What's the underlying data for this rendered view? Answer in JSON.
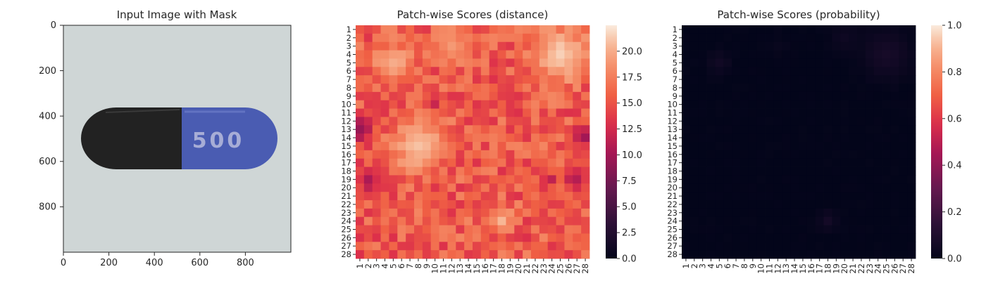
{
  "panels": {
    "image": {
      "title": "Input Image with Mask",
      "x_ticks": [
        "0",
        "200",
        "400",
        "600",
        "800"
      ],
      "y_ticks": [
        "0",
        "200",
        "400",
        "600",
        "800"
      ],
      "capsule_text": "500",
      "colors": {
        "background": "#cfd6d6",
        "capsule_dark": "#232323",
        "capsule_blue": "#4a5cb2",
        "print": "#a7add6"
      }
    },
    "distance": {
      "title": "Patch-wise Scores (distance)",
      "colorbar_ticks": [
        "0.0",
        "2.5",
        "5.0",
        "7.5",
        "10.0",
        "12.5",
        "15.0",
        "17.5",
        "20.0"
      ]
    },
    "probability": {
      "title": "Patch-wise Scores (probability)",
      "colorbar_ticks": [
        "0.0",
        "0.2",
        "0.4",
        "0.6",
        "0.8",
        "1.0"
      ]
    }
  },
  "chart_data": [
    {
      "type": "image",
      "title": "Input Image with Mask",
      "xlim": [
        0,
        1000
      ],
      "ylim": [
        1000,
        0
      ],
      "x_ticks": [
        0,
        200,
        400,
        600,
        800
      ],
      "y_ticks": [
        0,
        200,
        400,
        600,
        800
      ],
      "content": "capsule with black cap and blue body printed 500"
    },
    {
      "type": "heatmap",
      "title": "Patch-wise Scores (distance)",
      "rows": 28,
      "cols": 28,
      "row_labels": [
        "1",
        "2",
        "3",
        "4",
        "5",
        "6",
        "7",
        "8",
        "9",
        "10",
        "11",
        "12",
        "13",
        "14",
        "15",
        "16",
        "17",
        "18",
        "19",
        "20",
        "21",
        "22",
        "23",
        "24",
        "25",
        "26",
        "27",
        "28"
      ],
      "col_labels": [
        "1",
        "2",
        "3",
        "4",
        "5",
        "6",
        "7",
        "8",
        "9",
        "10",
        "11",
        "12",
        "13",
        "14",
        "15",
        "16",
        "17",
        "18",
        "19",
        "20",
        "21",
        "22",
        "23",
        "24",
        "25",
        "26",
        "27",
        "28"
      ],
      "vmin": 0,
      "vmax": 22.5,
      "colorbar_ticks": [
        0.0,
        2.5,
        5.0,
        7.5,
        10.0,
        12.5,
        15.0,
        17.5,
        20.0
      ],
      "colormap": "rocket",
      "baseline": 15.5,
      "hotspots": [
        {
          "row": 4,
          "col": 25,
          "radius": 2.2,
          "value": 21.5
        },
        {
          "row": 5,
          "col": 5,
          "radius": 1.6,
          "value": 20.0
        },
        {
          "row": 15,
          "col": 8,
          "radius": 2.0,
          "value": 21.0
        },
        {
          "row": 24,
          "col": 18,
          "radius": 1.0,
          "value": 20.5
        },
        {
          "row": 3,
          "col": 12,
          "radius": 1.5,
          "value": 19.0
        },
        {
          "row": 13,
          "col": 1,
          "radius": 1.1,
          "value": 9.5
        },
        {
          "row": 19,
          "col": 2,
          "radius": 1.0,
          "value": 10.5
        },
        {
          "row": 19,
          "col": 27,
          "radius": 1.0,
          "value": 11.0
        },
        {
          "row": 14,
          "col": 28,
          "radius": 0.9,
          "value": 10.0
        },
        {
          "row": 10,
          "col": 10,
          "radius": 0.6,
          "value": 12.0
        },
        {
          "row": 19,
          "col": 24,
          "radius": 0.6,
          "value": 11.5
        }
      ]
    },
    {
      "type": "heatmap",
      "title": "Patch-wise Scores (probability)",
      "rows": 28,
      "cols": 28,
      "row_labels": [
        "1",
        "2",
        "3",
        "4",
        "5",
        "6",
        "7",
        "8",
        "9",
        "10",
        "11",
        "12",
        "13",
        "14",
        "15",
        "16",
        "17",
        "18",
        "19",
        "20",
        "21",
        "22",
        "23",
        "24",
        "25",
        "26",
        "27",
        "28"
      ],
      "col_labels": [
        "1",
        "2",
        "3",
        "4",
        "5",
        "6",
        "7",
        "8",
        "9",
        "10",
        "11",
        "12",
        "13",
        "14",
        "15",
        "16",
        "17",
        "18",
        "19",
        "20",
        "21",
        "22",
        "23",
        "24",
        "25",
        "26",
        "27",
        "28"
      ],
      "vmin": 0,
      "vmax": 1.0,
      "colorbar_ticks": [
        0.0,
        0.2,
        0.4,
        0.6,
        0.8,
        1.0
      ],
      "colormap": "rocket",
      "baseline": 0.0,
      "hotspots": [
        {
          "row": 4,
          "col": 25,
          "radius": 2.0,
          "value": 0.07
        },
        {
          "row": 5,
          "col": 5,
          "radius": 1.0,
          "value": 0.05
        },
        {
          "row": 2,
          "col": 20,
          "radius": 1.2,
          "value": 0.04
        },
        {
          "row": 24,
          "col": 18,
          "radius": 0.8,
          "value": 0.06
        },
        {
          "row": 3,
          "col": 12,
          "radius": 1.0,
          "value": 0.02
        }
      ]
    }
  ]
}
